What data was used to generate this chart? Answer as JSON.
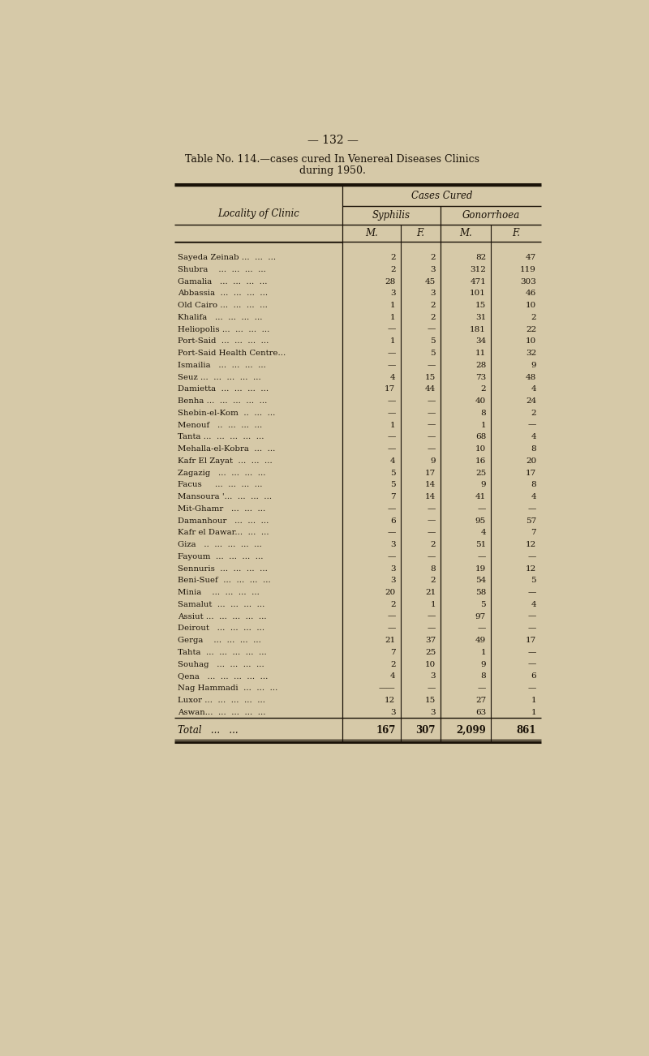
{
  "page_number": "— 132 —",
  "title_line1": "Table No. 114.—cases cured In Venereal Diseases Clinics",
  "title_line2": "during 1950.",
  "col_header_1": "Cases Cured",
  "col_header_2": "Syphilis",
  "col_header_3": "Gonorrhoea",
  "col_m1": "M.",
  "col_f1": "F.",
  "col_m2": "M.",
  "col_f2": "F.",
  "locality_header": "Locality of Clinic",
  "rows": [
    [
      "Sayeda Zeinab ...  ...  ...",
      "2",
      "2",
      "82",
      "47"
    ],
    [
      "Shubra    ...  ...  ...  ...",
      "2",
      "3",
      "312",
      "119"
    ],
    [
      "Gamalia   ...  ...  ...  ...",
      "28",
      "45",
      "471",
      "303"
    ],
    [
      "Abbassia  ...  ...  ...  ...",
      "3",
      "3",
      "101",
      "46"
    ],
    [
      "Old Cairo ...  ...  ...  ...",
      "1",
      "2",
      "15",
      "10"
    ],
    [
      "Khalifa   ...  ...  ...  ...",
      "1",
      "2",
      "31",
      "2"
    ],
    [
      "Heliopolis ...  ...  ...  ...",
      "—",
      "—",
      "181",
      "22"
    ],
    [
      "Port-Said  ...  ...  ...  ...",
      "1",
      "5",
      "34",
      "10"
    ],
    [
      "Port-Said Health Centre...",
      "—",
      "5",
      "11",
      "32"
    ],
    [
      "Ismailia   ...  ...  ...  ...",
      "—",
      "—",
      "28",
      "9"
    ],
    [
      "Seuz ...  ...  ...  ...  ...",
      "4",
      "15",
      "73",
      "48"
    ],
    [
      "Damietta  ...  ...  ...  ...",
      "17",
      "44",
      "2",
      "4"
    ],
    [
      "Benha ...  ...  ...  ...  ...",
      "—",
      "—",
      "40",
      "24"
    ],
    [
      "Shebin-el-Kom  ..  ...  ...",
      "—",
      "—",
      "8",
      "2"
    ],
    [
      "Menouf   ..  ...  ...  ...",
      "1",
      "—",
      "1",
      "—"
    ],
    [
      "Tanta ...  ...  ...  ...  ...",
      "—",
      "—",
      "68",
      "4"
    ],
    [
      "Mehalla-el-Kobra  ...  ...",
      "—",
      "—",
      "10",
      "8"
    ],
    [
      "Kafr El Zayat  ...  ...  ...",
      "4",
      "9",
      "16",
      "20"
    ],
    [
      "Zagazig   ...  ...  ...  ...",
      "5",
      "17",
      "25",
      "17"
    ],
    [
      "Facus     ...  ...  ...  ...",
      "5",
      "14",
      "9",
      "8"
    ],
    [
      "Mansoura '...  ...  ...  ...",
      "7",
      "14",
      "41",
      "4"
    ],
    [
      "Mit-Ghamr   ...  ...  ...",
      "—",
      "—",
      "—",
      "—"
    ],
    [
      "Damanhour   ...  ...  ...",
      "6",
      "—",
      "95",
      "57"
    ],
    [
      "Kafr el Dawar...  ...  ...",
      "—",
      "—",
      "4",
      "7"
    ],
    [
      "Giza   ..  ...  ...  ...  ...",
      "3",
      "2",
      "51",
      "12"
    ],
    [
      "Fayoum  ...  ...  ...  ...",
      "—",
      "—",
      "—",
      "—"
    ],
    [
      "Sennuris  ...  ...  ...  ...",
      "3",
      "8",
      "19",
      "12"
    ],
    [
      "Beni-Suef  ...  ...  ...  ...",
      "3",
      "2",
      "54",
      "5"
    ],
    [
      "Minia    ...  ...  ...  ...",
      "20",
      "21",
      "58",
      "—"
    ],
    [
      "Samalut  ...  ...  ...  ...",
      "2",
      "1",
      "5",
      "4"
    ],
    [
      "Assiut ...  ...  ...  ...  ...",
      "—",
      "—",
      "97",
      "—"
    ],
    [
      "Deirout   ...  ...  ...  ...",
      "—",
      "—",
      "—",
      "—"
    ],
    [
      "Gerga    ...  ...  ...  ...",
      "21",
      "37",
      "49",
      "17"
    ],
    [
      "Tahta  ...  ...  ...  ...  ...",
      "7",
      "25",
      "1",
      "—"
    ],
    [
      "Souhag   ...  ...  ...  ...",
      "2",
      "10",
      "9",
      "—"
    ],
    [
      "Qena   ...  ...  ...  ...  ...",
      "4",
      "3",
      "8",
      "6"
    ],
    [
      "Nag Hammadi  ...  ...  ...",
      "——",
      "—",
      "—",
      "—"
    ],
    [
      "Luxor ...  ...  ...  ...  ...",
      "12",
      "15",
      "27",
      "1"
    ],
    [
      "Aswan...  ...  ...  ...  ...",
      "3",
      "3",
      "63",
      "1"
    ]
  ],
  "total_label": "Total   ...   ...",
  "total_values": [
    "167",
    "307",
    "2,099",
    "861"
  ],
  "bg_color": "#d6c9a8",
  "table_bg": "#d6c9a8",
  "text_color": "#1a1208",
  "line_color": "#1a1208"
}
